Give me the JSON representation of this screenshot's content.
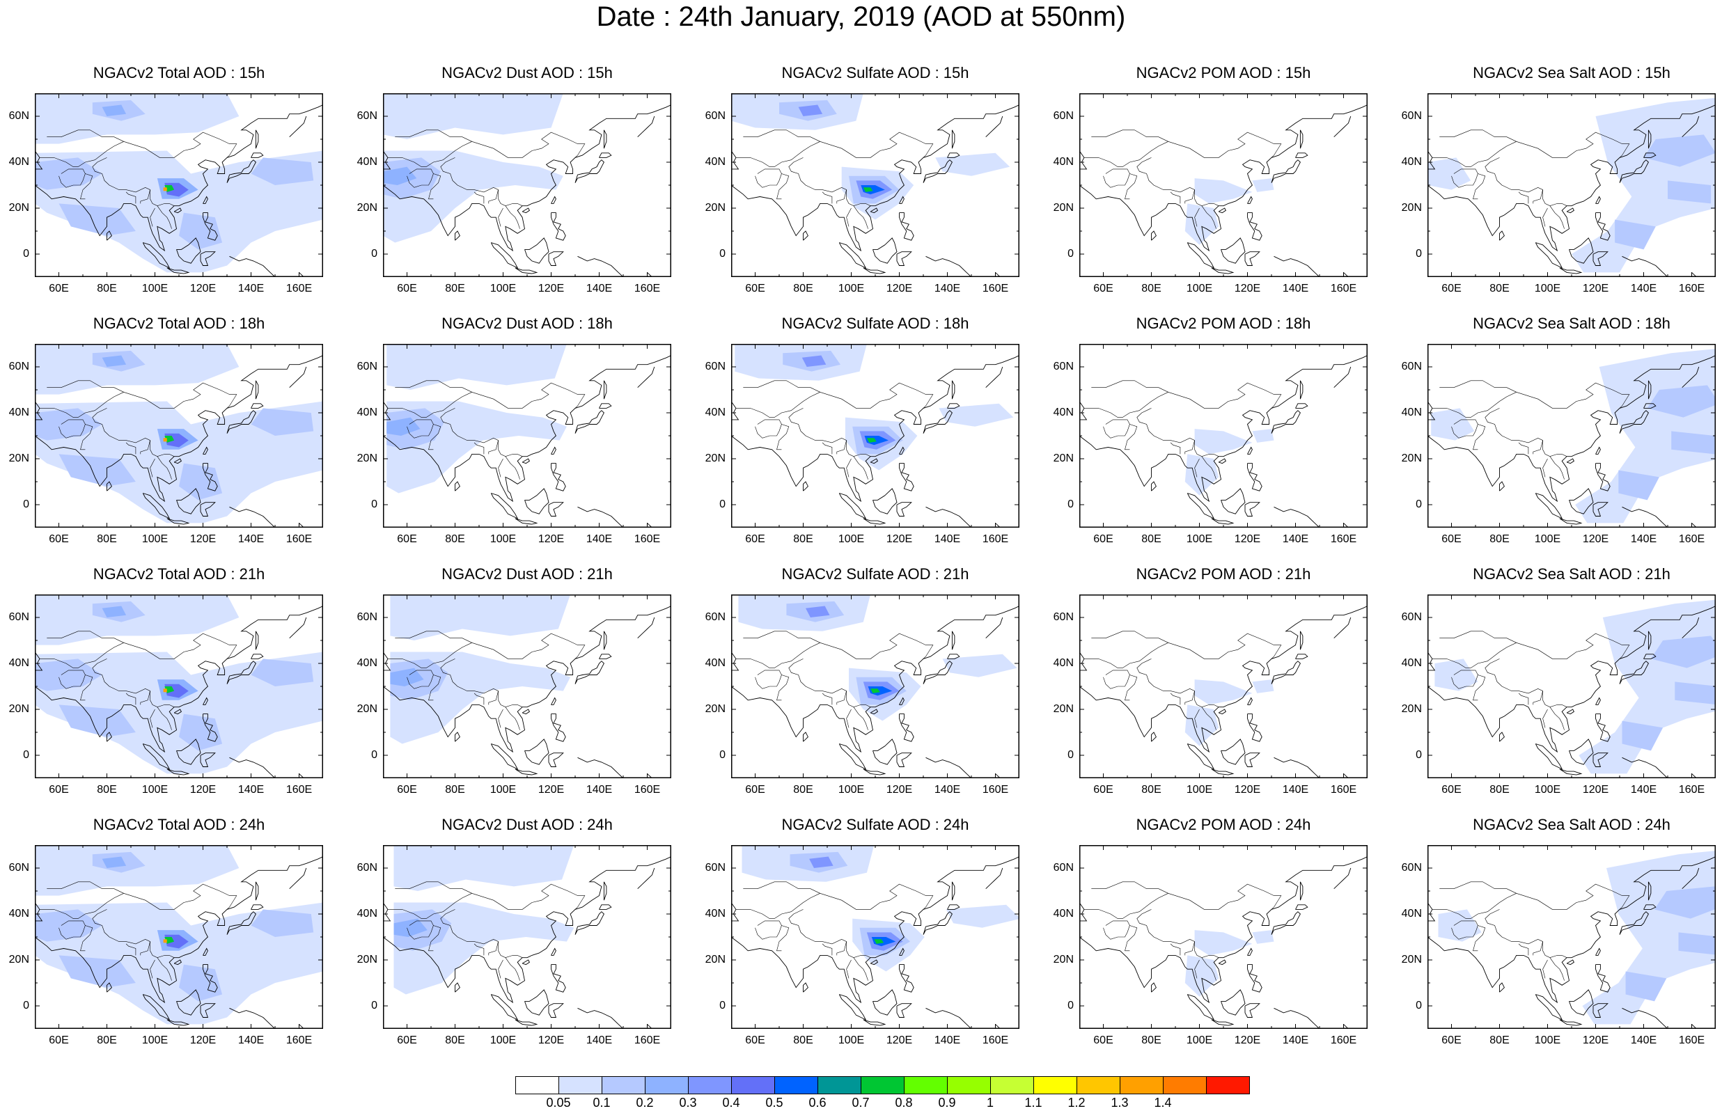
{
  "figure": {
    "title": "Date : 24th January, 2019 (AOD at 550nm)",
    "x_ticks": [
      "60E",
      "80E",
      "100E",
      "120E",
      "140E",
      "160E"
    ],
    "y_ticks": [
      "60N",
      "40N",
      "20N",
      "0"
    ],
    "rows": [
      {
        "hour": "15h",
        "panels": [
          "NGACv2 Total AOD : 15h",
          "NGACv2 Dust AOD : 15h",
          "NGACv2 Sulfate AOD : 15h",
          "NGACv2 POM AOD : 15h",
          "NGACv2 Sea Salt AOD : 15h"
        ]
      },
      {
        "hour": "18h",
        "panels": [
          "NGACv2 Total AOD : 18h",
          "NGACv2 Dust AOD : 18h",
          "NGACv2 Sulfate AOD : 18h",
          "NGACv2 POM AOD : 18h",
          "NGACv2 Sea Salt AOD : 18h"
        ]
      },
      {
        "hour": "21h",
        "panels": [
          "NGACv2 Total AOD : 21h",
          "NGACv2 Dust AOD : 21h",
          "NGACv2 Sulfate AOD : 21h",
          "NGACv2 POM AOD : 21h",
          "NGACv2 Sea Salt AOD : 21h"
        ]
      },
      {
        "hour": "24h",
        "panels": [
          "NGACv2 Total AOD : 24h",
          "NGACv2 Dust AOD : 24h",
          "NGACv2 Sulfate AOD : 24h",
          "NGACv2 POM AOD : 24h",
          "NGACv2 Sea Salt  AOD : 24h"
        ]
      }
    ]
  },
  "map": {
    "lon_range": [
      50,
      170
    ],
    "lat_range": [
      -10,
      70
    ],
    "grid": false
  },
  "colorbar": {
    "labels": [
      "0.05",
      "0.1",
      "0.2",
      "0.3",
      "0.4",
      "0.5",
      "0.6",
      "0.7",
      "0.8",
      "0.9",
      "1",
      "1.1",
      "1.2",
      "1.3",
      "1.4"
    ],
    "colors": [
      "#ffffff",
      "#d6e2ff",
      "#b5c9ff",
      "#8eb2ff",
      "#7f96ff",
      "#6370f8",
      "#0063ff",
      "#009696",
      "#00c633",
      "#63ff00",
      "#96ff00",
      "#c6ff33",
      "#ffff00",
      "#ffc600",
      "#ffa000",
      "#ff7c00",
      "#ff1900"
    ]
  }
}
